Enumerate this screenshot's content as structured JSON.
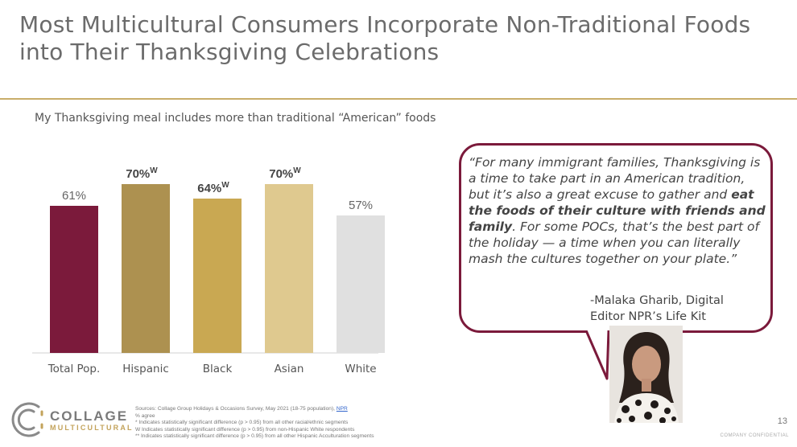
{
  "title": "Most Multicultural Consumers Incorporate Non-Traditional Foods into Their Thanksgiving Celebrations",
  "subtitle": "My Thanksgiving meal includes more than traditional “American” foods",
  "chart_data": {
    "type": "bar",
    "title": "My Thanksgiving meal includes more than traditional “American” foods",
    "categories": [
      "Total Pop.",
      "Hispanic",
      "Black",
      "Asian",
      "White"
    ],
    "values": [
      61,
      70,
      64,
      70,
      57
    ],
    "labels": [
      "61%",
      "70%",
      "64%",
      "70%",
      "57%"
    ],
    "superscripts": [
      "",
      "W",
      "W",
      "W",
      ""
    ],
    "bold_labels": [
      false,
      true,
      true,
      true,
      false
    ],
    "colors": [
      "#7b1a3b",
      "#ad9150",
      "#c9a852",
      "#dfc98f",
      "#e0e0e0"
    ],
    "ylim": [
      0,
      100
    ],
    "grid": false
  },
  "quote": {
    "part1": "“For many immigrant families, Thanksgiving is a time to take part in an American tradition, but it’s also a great excuse to gather and ",
    "bold": "eat the foods of their culture with friends and family",
    "part2": ". For some POCs, that’s the best part of the holiday — a time when you can literally mash the cultures together on your plate.”",
    "attribution_line1": "-Malaka Gharib, Digital",
    "attribution_line2": "Editor NPR’s Life Kit"
  },
  "logo": {
    "line1": "COLLAGE",
    "line2": "MULTICULTURAL"
  },
  "sources": {
    "line1": "Sources: Collage Group Holidays & Occasions Survey, May 2021 (18-75 population), ",
    "link": "NPR",
    "line2": "% agree",
    "line3": "* Indicates statistically significant difference (p > 0.95) from all other racial/ethnic segments",
    "line4": "W Indicates statistically significant difference (p > 0.95) from non-Hispanic White respondents",
    "line5": "** Indicates statistically significant difference (p > 0.95) from all other Hispanic Acculturation segments"
  },
  "page_number": "13",
  "confidential": "COMPANY CONFIDENTIAL"
}
